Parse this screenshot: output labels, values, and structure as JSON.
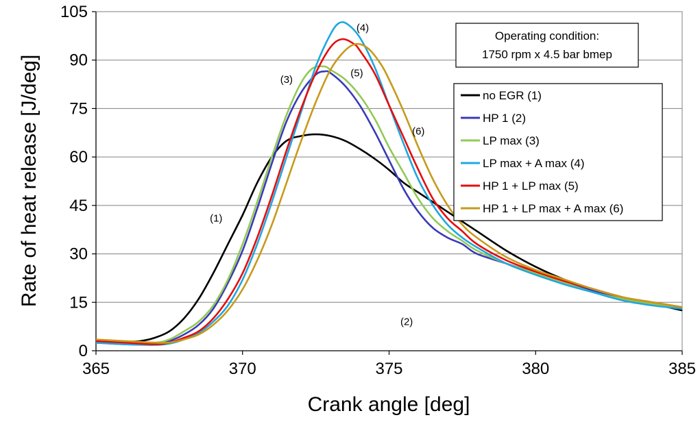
{
  "chart_data": {
    "type": "line",
    "title": "",
    "xlabel": "Crank angle [deg]",
    "ylabel": "Rate of heat release [J/deg]",
    "xlim": [
      365,
      385
    ],
    "ylim": [
      0,
      105
    ],
    "xticks": [
      365,
      370,
      375,
      380,
      385
    ],
    "yticks": [
      0,
      15,
      30,
      45,
      60,
      75,
      90,
      105
    ],
    "grid": "horizontal",
    "legend_position": "right",
    "condition_box": [
      "Operating condition:",
      "1750 rpm x 4.5 bar bmep"
    ],
    "series": [
      {
        "name": "no EGR (1)",
        "color": "#000000",
        "label": "(1)",
        "x": [
          365,
          366,
          366.5,
          367,
          367.5,
          368,
          368.5,
          369,
          369.5,
          370,
          370.5,
          371,
          371.5,
          372,
          372.5,
          373,
          373.5,
          374,
          374.5,
          375,
          375.5,
          376,
          376.5,
          377,
          377.5,
          378,
          379,
          380,
          381,
          382,
          383,
          384,
          385
        ],
        "y": [
          3,
          2.8,
          3,
          4,
          6,
          10,
          16,
          24,
          33,
          42,
          52,
          60,
          65,
          66.5,
          67,
          66.5,
          65,
          62.5,
          59.5,
          56,
          52,
          49,
          46,
          43,
          40,
          37,
          31,
          26,
          22,
          19,
          16.5,
          14.5,
          12.5
        ]
      },
      {
        "name": "HP 1 (2)",
        "color": "#3a3ab8",
        "label": "(2)",
        "x": [
          365,
          366,
          367,
          367.5,
          368,
          368.5,
          369,
          369.5,
          370,
          370.5,
          371,
          371.5,
          372,
          372.5,
          372.8,
          373,
          373.5,
          374,
          374.5,
          375,
          375.5,
          376,
          376.5,
          377,
          377.5,
          378,
          379,
          380,
          381,
          382,
          383,
          384,
          385
        ],
        "y": [
          2.5,
          2,
          2,
          3,
          5,
          8,
          13,
          21,
          31,
          44,
          58,
          71,
          80,
          85.5,
          86.5,
          86,
          82,
          76,
          68,
          59,
          50,
          43,
          38,
          35,
          33,
          30,
          27,
          24,
          21,
          18.5,
          16,
          14.5,
          13
        ]
      },
      {
        "name": "LP max (3)",
        "color": "#92c957",
        "label": "(3)",
        "x": [
          365,
          366,
          367,
          367.5,
          368,
          368.5,
          369,
          369.5,
          370,
          370.5,
          371,
          371.5,
          372,
          372.4,
          372.8,
          373,
          373.5,
          374,
          374.5,
          375,
          375.5,
          376,
          376.5,
          377,
          377.5,
          378,
          379,
          380,
          381,
          382,
          383,
          384,
          385
        ],
        "y": [
          3,
          2.5,
          2.5,
          3.5,
          6,
          9,
          14,
          22,
          33,
          46,
          60,
          73,
          83,
          87.5,
          88,
          87,
          84,
          79,
          72,
          63,
          55,
          47,
          41,
          37,
          34,
          31,
          27,
          24,
          21,
          18,
          16,
          14.5,
          13
        ]
      },
      {
        "name": "LP max + A max (4)",
        "color": "#1fa7e0",
        "label": "(4)",
        "x": [
          365,
          366,
          367,
          367.5,
          368,
          368.5,
          369,
          369.5,
          370,
          370.5,
          371,
          371.5,
          372,
          372.5,
          373,
          373.3,
          373.6,
          374,
          374.5,
          375,
          375.5,
          376,
          376.5,
          377,
          377.5,
          378,
          379,
          380,
          381,
          382,
          383,
          384,
          385
        ],
        "y": [
          2.5,
          2,
          1.8,
          2.2,
          3.5,
          5.5,
          9,
          14,
          22,
          33,
          46,
          60,
          74,
          88,
          98,
          101.5,
          101,
          97,
          88,
          76,
          64,
          53,
          45,
          39,
          35,
          32,
          27,
          23.5,
          20.5,
          18,
          15.5,
          14,
          13
        ]
      },
      {
        "name": "HP 1 + LP max (5)",
        "color": "#e60d0d",
        "label": "(5)",
        "x": [
          365,
          366,
          367,
          367.5,
          368,
          368.5,
          369,
          369.5,
          370,
          370.5,
          371,
          371.5,
          372,
          372.5,
          373,
          373.4,
          373.8,
          374,
          374.5,
          375,
          375.5,
          376,
          376.5,
          377,
          377.5,
          378,
          379,
          380,
          381,
          382,
          383,
          384,
          385
        ],
        "y": [
          3,
          2.5,
          2,
          2.5,
          4,
          6,
          10,
          16,
          24,
          35,
          48,
          62,
          75,
          86,
          94,
          96.5,
          95,
          93,
          86,
          76,
          66,
          56,
          47,
          41,
          37,
          33,
          28,
          24.5,
          21.5,
          19,
          16.5,
          15,
          13.5
        ]
      },
      {
        "name": "HP 1 + LP max + A max (6)",
        "color": "#c79a1a",
        "label": "(6)",
        "x": [
          365,
          366,
          367,
          367.5,
          368,
          368.5,
          369,
          369.5,
          370,
          370.5,
          371,
          371.5,
          372,
          372.5,
          373,
          373.5,
          373.9,
          374.3,
          374.7,
          375,
          375.5,
          376,
          376.5,
          377,
          377.5,
          378,
          379,
          380,
          381,
          382,
          383,
          384,
          385
        ],
        "y": [
          3.5,
          3,
          2.5,
          2.5,
          3.5,
          5,
          8,
          12.5,
          19,
          28,
          39,
          52,
          65,
          77,
          87,
          93,
          95,
          93.5,
          89,
          84,
          74,
          63,
          53,
          45,
          39,
          35,
          29,
          25,
          22,
          19,
          16.5,
          15,
          13.5
        ]
      }
    ]
  }
}
